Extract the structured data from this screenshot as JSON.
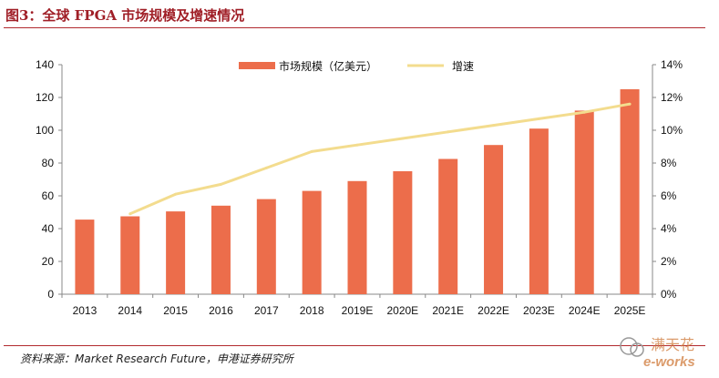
{
  "header": {
    "title": "图3：全球 FPGA 市场规模及增速情况"
  },
  "footer": {
    "source": "资料来源：Market Research Future，申港证券研究所"
  },
  "watermark": {
    "text_top": "满天花",
    "text_bottom": "e-works"
  },
  "colors": {
    "bar": "#ec6d4b",
    "line": "#f3dc8e",
    "rule": "#b22a2f",
    "title": "#a01f27"
  },
  "chart_data": {
    "type": "bar",
    "title": "全球 FPGA 市场规模及增速情况",
    "categories": [
      "2013",
      "2014",
      "2015",
      "2016",
      "2017",
      "2018",
      "2019E",
      "2020E",
      "2021E",
      "2022E",
      "2023E",
      "2024E",
      "2025E"
    ],
    "series": [
      {
        "name": "市场规模（亿美元）",
        "type": "bar",
        "axis": "left",
        "values": [
          45.5,
          47.5,
          50.5,
          54,
          58,
          63,
          69,
          75,
          82.5,
          91,
          101,
          112,
          125
        ]
      },
      {
        "name": "增速",
        "type": "line",
        "axis": "right",
        "values": [
          null,
          4.9,
          6.1,
          6.7,
          7.7,
          8.7,
          9.1,
          9.5,
          9.9,
          10.3,
          10.7,
          11.1,
          11.6
        ]
      }
    ],
    "y_left": {
      "min": 0,
      "max": 140,
      "step": 20,
      "ticks": [
        "0",
        "20",
        "40",
        "60",
        "80",
        "100",
        "120",
        "140"
      ]
    },
    "y_right": {
      "min": 0,
      "max": 14,
      "step": 2,
      "ticks": [
        "0%",
        "2%",
        "4%",
        "6%",
        "8%",
        "10%",
        "12%",
        "14%"
      ]
    },
    "legend": [
      "市场规模（亿美元）",
      "增速"
    ],
    "legend_position": "top-center",
    "grid": false
  }
}
